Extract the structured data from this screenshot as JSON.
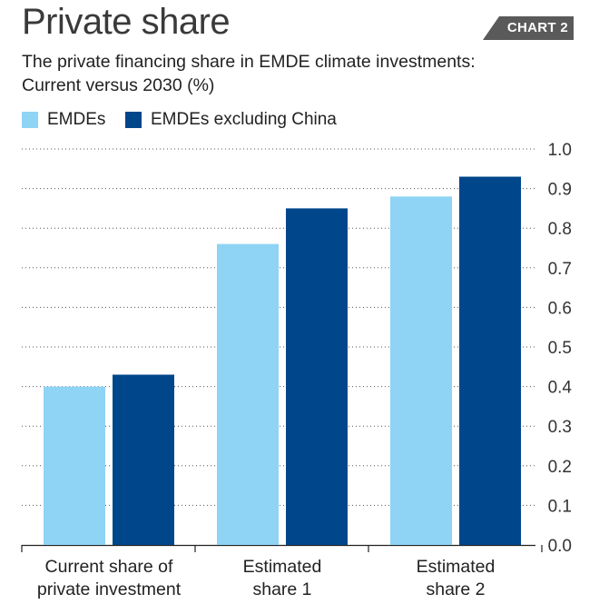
{
  "header": {
    "title": "Private share",
    "badge": "CHART 2",
    "subtitle_line1": "The private financing share in EMDE climate investments:",
    "subtitle_line2": "Current versus 2030 (%)"
  },
  "colors": {
    "series_1": "#8fd3f5",
    "series_2": "#00468b",
    "badge": "#5a5a5a",
    "grid": "#555555"
  },
  "chart_data": {
    "type": "bar",
    "title": "Private share",
    "subtitle": "The private financing share in EMDE climate investments: Current versus 2030 (%)",
    "categories": [
      [
        "Current share of",
        "private investment"
      ],
      [
        "Estimated",
        "share 1"
      ],
      [
        "Estimated",
        "share 2"
      ]
    ],
    "series": [
      {
        "name": "EMDEs",
        "values": [
          0.4,
          0.76,
          0.88
        ]
      },
      {
        "name": "EMDEs excluding China",
        "values": [
          0.43,
          0.85,
          0.93
        ]
      }
    ],
    "ylim": [
      0,
      1.0
    ],
    "yticks": [
      "0.0",
      "0.1",
      "0.2",
      "0.3",
      "0.4",
      "0.5",
      "0.6",
      "0.7",
      "0.8",
      "0.9",
      "1.0"
    ],
    "y_axis_side": "right",
    "grid": true,
    "legend": "top-left"
  }
}
